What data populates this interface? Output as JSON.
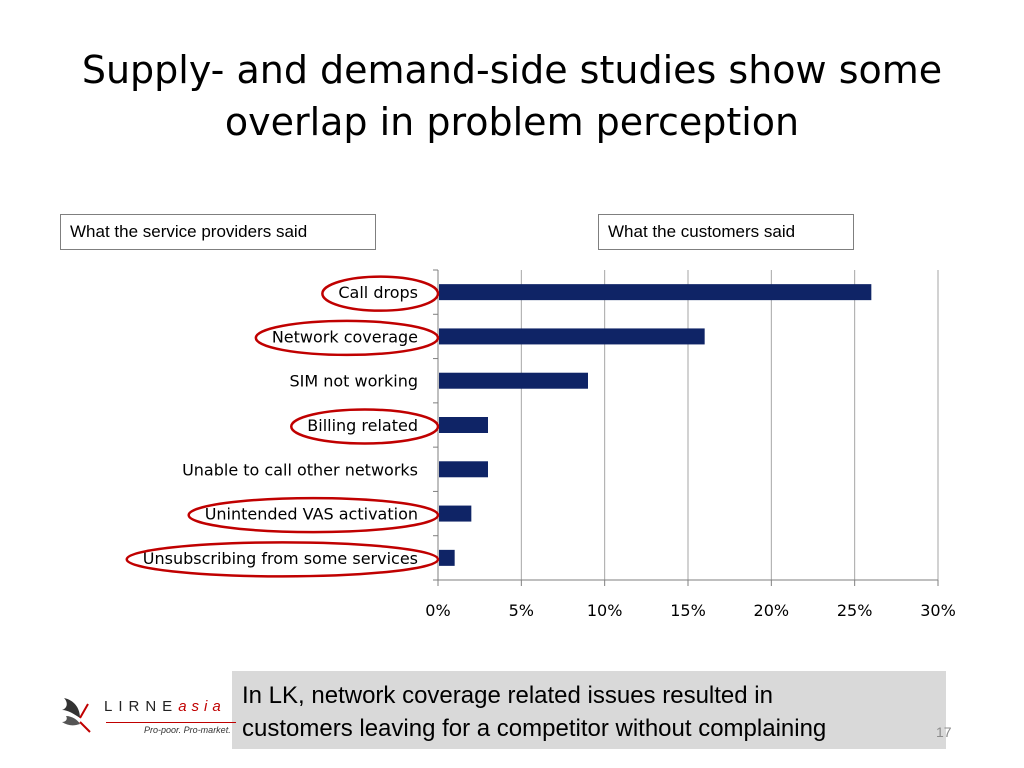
{
  "slide": {
    "title_line1": "Supply- and demand-side studies show some",
    "title_line2": "overlap in problem perception",
    "page_number": "17"
  },
  "boxes": {
    "providers": "What the service providers said",
    "customers": "What the customers said"
  },
  "callout": {
    "line1": "In LK, network coverage related issues resulted in",
    "line2": "customers leaving for a competitor without complaining"
  },
  "logo": {
    "word_main": "LIRNE",
    "word_accent": "asia",
    "tagline": "Pro-poor. Pro-market."
  },
  "colors": {
    "bar": "#0f2466",
    "highlight_ellipse": "#c00000",
    "callout_bg": "#d9d9d9",
    "gridline": "#a6a6a6"
  },
  "chart_data": {
    "type": "bar",
    "orientation": "horizontal",
    "categories": [
      "Call drops",
      "Network coverage",
      "SIM not working",
      "Billing related",
      "Unable to call other networks",
      "Unintended VAS activation",
      "Unsubscribing from some services"
    ],
    "values": [
      26,
      16,
      9,
      3,
      3,
      2,
      1
    ],
    "value_unit": "%",
    "xlim": [
      0,
      30
    ],
    "xticks": [
      "0%",
      "5%",
      "10%",
      "15%",
      "20%",
      "25%",
      "30%"
    ],
    "grid": "vertical",
    "highlighted": [
      "Call drops",
      "Network coverage",
      "Billing related",
      "Unintended VAS activation",
      "Unsubscribing from some services"
    ]
  }
}
